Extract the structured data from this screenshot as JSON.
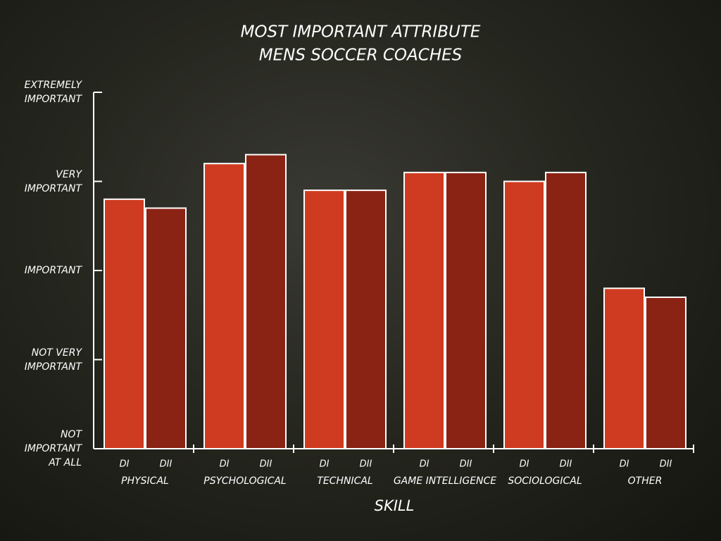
{
  "chart_data": {
    "type": "bar",
    "title": "MOST IMPORTANT ATTRIBUTE",
    "subtitle": "MENS SOCCER COACHES",
    "x_label": "SKILL",
    "categories": [
      "PHYSICAL",
      "PSYCHOLOGICAL",
      "TECHNICAL",
      "GAME INTELLIGENCE",
      "SOCIOLOGICAL",
      "OTHER"
    ],
    "series": [
      {
        "name": "DI",
        "color": "#cf3b20",
        "values": [
          3.8,
          4.2,
          3.9,
          4.1,
          4.0,
          2.8
        ]
      },
      {
        "name": "DII",
        "color": "#8b2314",
        "values": [
          3.7,
          4.3,
          3.9,
          4.1,
          4.1,
          2.7
        ]
      }
    ],
    "ylim": [
      1,
      5
    ],
    "yticks": [
      {
        "value": 1,
        "label": "NOT IMPORTANT AT ALL"
      },
      {
        "value": 2,
        "label": "NOT VERY IMPORTANT"
      },
      {
        "value": 3,
        "label": "IMPORTANT"
      },
      {
        "value": 4,
        "label": "VERY IMPORTANT"
      },
      {
        "value": 5,
        "label": "EXTREMELY IMPORTANT"
      }
    ],
    "grid": false
  }
}
